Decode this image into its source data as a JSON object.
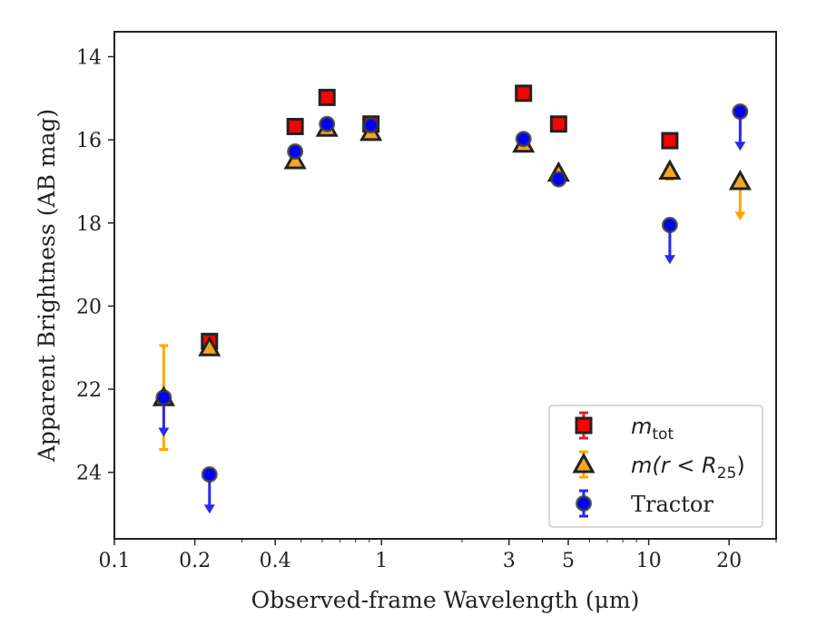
{
  "chart_data": {
    "type": "scatter",
    "xlabel": "Observed-frame Wavelength (μm)",
    "ylabel": "Apparent Brightness (AB mag)",
    "x_scale": "log",
    "xlim": [
      0.1,
      30
    ],
    "ylim": [
      25.6,
      13.4
    ],
    "y_inverted": true,
    "x_ticks": [
      {
        "value": 0.1,
        "label": "0.1"
      },
      {
        "value": 0.2,
        "label": "0.2"
      },
      {
        "value": 0.4,
        "label": "0.4"
      },
      {
        "value": 1,
        "label": "1"
      },
      {
        "value": 3,
        "label": "3"
      },
      {
        "value": 5,
        "label": "5"
      },
      {
        "value": 10,
        "label": "10"
      },
      {
        "value": 20,
        "label": "20"
      }
    ],
    "y_ticks": [
      {
        "value": 14,
        "label": "14"
      },
      {
        "value": 16,
        "label": "16"
      },
      {
        "value": 18,
        "label": "18"
      },
      {
        "value": 20,
        "label": "20"
      },
      {
        "value": 22,
        "label": "22"
      },
      {
        "value": 24,
        "label": "24"
      }
    ],
    "grid": false,
    "legend_position": "bottom-right",
    "series": [
      {
        "name": "m_tot",
        "legend_base": "m",
        "legend_sub": "tot",
        "marker": "square",
        "color": "#ff0000",
        "err_color": "#d62728",
        "points": [
          {
            "x": 0.227,
            "y": 20.85
          },
          {
            "x": 0.475,
            "y": 15.68
          },
          {
            "x": 0.625,
            "y": 14.98
          },
          {
            "x": 0.913,
            "y": 15.62
          },
          {
            "x": 3.4,
            "y": 14.88
          },
          {
            "x": 4.6,
            "y": 15.62
          },
          {
            "x": 12.0,
            "y": 16.02
          }
        ]
      },
      {
        "name": "m(r<R25)",
        "legend_base": "m",
        "legend_mid": "(r < R",
        "legend_sub": "25",
        "legend_end": ")",
        "marker": "triangle",
        "color": "#f5a623",
        "err_color": "#ffa500",
        "points": [
          {
            "x": 0.153,
            "y": 22.2,
            "err_low": 1.25,
            "err_high": 1.25
          },
          {
            "x": 0.227,
            "y": 21.0
          },
          {
            "x": 0.475,
            "y": 16.5
          },
          {
            "x": 0.625,
            "y": 15.72
          },
          {
            "x": 0.913,
            "y": 15.82
          },
          {
            "x": 3.4,
            "y": 16.1
          },
          {
            "x": 4.6,
            "y": 16.8
          },
          {
            "x": 12.0,
            "y": 16.75,
            "err_high": 0.2
          },
          {
            "x": 22.0,
            "y": 17.0,
            "upper_limit": 0.9
          }
        ]
      },
      {
        "name": "Tractor",
        "legend_label": "Tractor",
        "marker": "circle",
        "color": "#0000ff",
        "err_color": "#2929f0",
        "points": [
          {
            "x": 0.153,
            "y": 22.2,
            "upper_limit": 0.9
          },
          {
            "x": 0.227,
            "y": 24.05,
            "upper_limit": 0.9
          },
          {
            "x": 0.475,
            "y": 16.28
          },
          {
            "x": 0.625,
            "y": 15.62
          },
          {
            "x": 0.913,
            "y": 15.65
          },
          {
            "x": 3.4,
            "y": 15.98
          },
          {
            "x": 4.6,
            "y": 16.95
          },
          {
            "x": 12.0,
            "y": 18.05,
            "upper_limit": 0.9
          },
          {
            "x": 22.0,
            "y": 15.32,
            "upper_limit": 0.9
          }
        ]
      }
    ]
  }
}
